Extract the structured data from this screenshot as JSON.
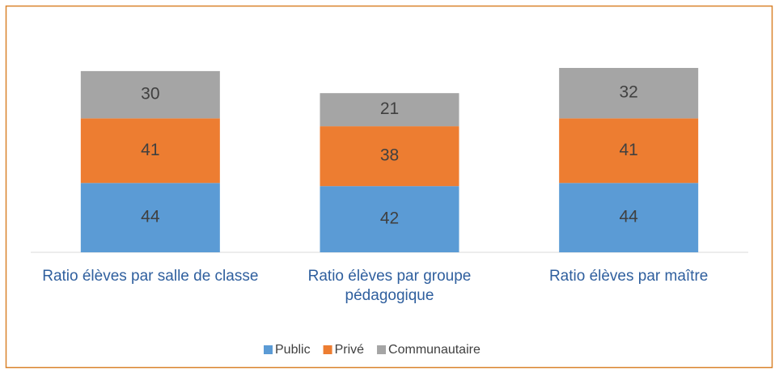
{
  "chart_data": {
    "type": "stacked_bar",
    "categories": [
      "Ratio élèves par salle de classe",
      "Ratio élèves par groupe pédagogique",
      "Ratio élèves par maître"
    ],
    "series": [
      {
        "name": "Public",
        "color": "#5b9bd5",
        "values": [
          44,
          42,
          44
        ]
      },
      {
        "name": "Privé",
        "color": "#ed7d31",
        "values": [
          41,
          38,
          41
        ]
      },
      {
        "name": "Communautaire",
        "color": "#a5a5a5",
        "values": [
          30,
          21,
          32
        ]
      }
    ],
    "legend": "bottom"
  }
}
